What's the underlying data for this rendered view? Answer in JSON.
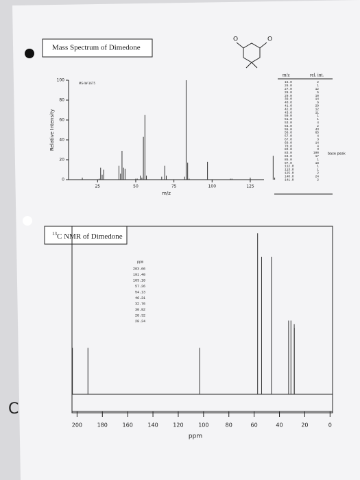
{
  "document": {
    "ms_title": "Mass Spectrum of Dimedone",
    "ms_id": "MS-IW-1675",
    "ms_table": {
      "header": [
        "m/z",
        "rel. int."
      ],
      "rows": [
        [
          "15.0",
          "2"
        ],
        [
          "26.0",
          "1"
        ],
        [
          "27.0",
          "12"
        ],
        [
          "28.0",
          "5"
        ],
        [
          "29.0",
          "10"
        ],
        [
          "39.0",
          "14"
        ],
        [
          "40.0",
          "6"
        ],
        [
          "41.0",
          "29"
        ],
        [
          "42.0",
          "12"
        ],
        [
          "43.0",
          "11"
        ],
        [
          "50.0",
          "1"
        ],
        [
          "51.0",
          "1"
        ],
        [
          "53.0",
          "4"
        ],
        [
          "54.0",
          "2"
        ],
        [
          "55.0",
          "43"
        ],
        [
          "56.0",
          "65"
        ],
        [
          "57.0",
          "4"
        ],
        [
          "67.0",
          "3"
        ],
        [
          "69.0",
          "14"
        ],
        [
          "70.0",
          "4"
        ],
        [
          "82.0",
          "3"
        ],
        [
          "83.0",
          "100"
        ],
        [
          "84.0",
          "17"
        ],
        [
          "85.0",
          "1"
        ],
        [
          "97.0",
          "18"
        ],
        [
          "112.0",
          "1"
        ],
        [
          "113.0",
          "1"
        ],
        [
          "125.0",
          "2"
        ],
        [
          "140.0",
          "24"
        ],
        [
          "141.0",
          "2"
        ]
      ]
    },
    "annotation": "base peak",
    "nmr_title_sup": "13",
    "nmr_title": "C NMR of Dimedone",
    "ppm_header": "ppm",
    "ppm_list": [
      "203.66",
      "191.40",
      "103.10",
      "57.26",
      "54.13",
      "46.31",
      "32.76",
      "30.92",
      "28.32",
      "28.24"
    ],
    "margin_mark": "C",
    "atoms": [
      "O",
      "O"
    ]
  },
  "chart_data": [
    {
      "type": "bar",
      "x_label": "m/z",
      "y_label": "Relative Intensity",
      "color": "#333",
      "x": [
        15,
        26,
        27,
        28,
        29,
        39,
        40,
        41,
        42,
        43,
        50,
        51,
        53,
        54,
        55,
        56,
        57,
        67,
        69,
        70,
        82,
        83,
        84,
        85,
        97,
        112,
        113,
        125,
        140,
        141
      ],
      "values": [
        2,
        1,
        12,
        5,
        10,
        14,
        6,
        29,
        12,
        11,
        1,
        1,
        4,
        2,
        43,
        65,
        4,
        3,
        14,
        4,
        3,
        100,
        17,
        1,
        18,
        1,
        1,
        2,
        24,
        2
      ],
      "xlim": [
        6,
        134
      ],
      "xticks": [
        25,
        50,
        75,
        100,
        125
      ],
      "ylim": [
        0,
        100
      ],
      "yticks": [
        0,
        20,
        40,
        60,
        80,
        100
      ]
    },
    {
      "type": "stick",
      "x_label": "ppm",
      "color": "#333",
      "x": [
        203.66,
        191.4,
        103.1,
        57.26,
        54.13,
        46.31,
        32.76,
        30.92,
        28.32,
        28.24
      ],
      "values": [
        35,
        35,
        35,
        98,
        85,
        85,
        50,
        50,
        48,
        46
      ],
      "xlim": [
        204,
        -2
      ],
      "xticks": [
        200,
        180,
        160,
        140,
        120,
        100,
        80,
        60,
        40,
        20,
        0
      ],
      "ylim": [
        0,
        100
      ]
    }
  ]
}
